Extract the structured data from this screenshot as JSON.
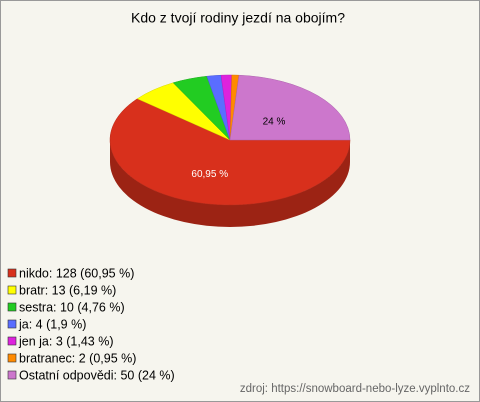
{
  "chart_data": {
    "type": "pie",
    "title": "Kdo z tvojí rodiny jezdí na obojím?",
    "categories": [
      "nikdo",
      "bratr",
      "sestra",
      "ja",
      "jen ja",
      "bratranec",
      "Ostatní odpovědi"
    ],
    "values": [
      128,
      13,
      10,
      4,
      3,
      2,
      50
    ],
    "legend_labels": [
      "nikdo: 128 (60,95 %)",
      "bratr: 13 (6,19 %)",
      "sestra: 10 (4,76 %)",
      "ja: 4 (1,9 %)",
      "jen ja: 3 (1,43 %)",
      "bratranec: 2 (0,95 %)",
      "Ostatní odpovědi: 50 (24 %)"
    ],
    "value_labels": [
      "60,95 %",
      null,
      null,
      null,
      null,
      null,
      "24 %"
    ],
    "colors": [
      "#d8301c",
      "#ffff00",
      "#22cc22",
      "#5a6dff",
      "#dd22dd",
      "#ff8a00",
      "#cc77cc"
    ],
    "legend": "bottom-left",
    "source": "zdroj: https://snowboard-nebo-lyze.vyplnto.cz"
  }
}
